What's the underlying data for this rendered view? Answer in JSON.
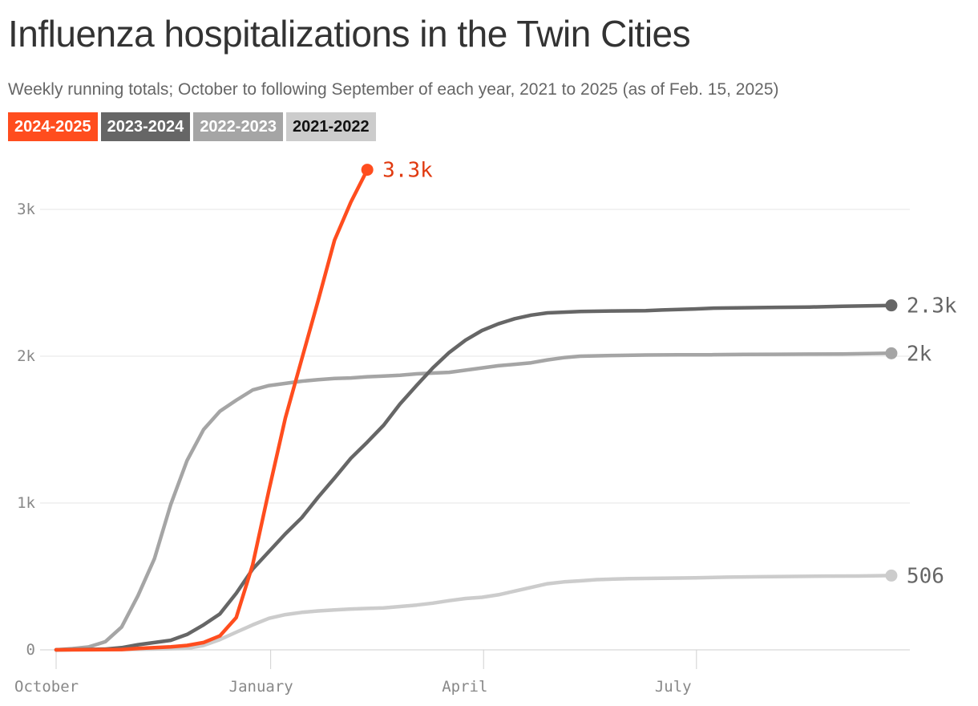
{
  "chart_data": {
    "type": "line",
    "title": "Influenza hospitalizations in the Twin Cities",
    "subtitle": "Weekly running totals; October to following September of each year, 2021 to 2025 (as of Feb. 15, 2025)",
    "xlabel": "",
    "ylabel": "",
    "x_unit": "weeks since October 1",
    "x_ticks": [
      {
        "label": "October",
        "week": 0
      },
      {
        "label": "January",
        "week": 13.1
      },
      {
        "label": "April",
        "week": 26.1
      },
      {
        "label": "July",
        "week": 39.1
      }
    ],
    "y_ticks": [
      {
        "label": "0",
        "value": 0
      },
      {
        "label": "1k",
        "value": 1000
      },
      {
        "label": "2k",
        "value": 2000
      },
      {
        "label": "3k",
        "value": 3000
      }
    ],
    "xlim": [
      0,
      51.5
    ],
    "ylim": [
      0,
      3000
    ],
    "grid": "horizontal",
    "legend_position": "top-left",
    "series": [
      {
        "name": "2021-2022",
        "color": "#cccccc",
        "text_color": "#111111",
        "end_label": "506",
        "label_color": "#666666",
        "x": [
          0,
          4,
          8,
          9,
          10,
          11,
          12,
          13,
          14,
          15,
          16,
          17,
          18,
          19,
          20,
          21,
          22,
          23,
          24,
          25,
          26,
          27,
          28,
          29,
          30,
          31,
          32,
          33,
          35,
          37,
          39,
          41,
          43,
          45,
          47,
          49,
          51
        ],
        "values": [
          0,
          2,
          10,
          30,
          70,
          120,
          170,
          215,
          240,
          255,
          265,
          272,
          278,
          282,
          285,
          295,
          305,
          318,
          335,
          350,
          358,
          375,
          400,
          425,
          450,
          463,
          470,
          478,
          485,
          488,
          490,
          495,
          498,
          500,
          502,
          503,
          506
        ]
      },
      {
        "name": "2022-2023",
        "color": "#a5a5a5",
        "text_color": "#ffffff",
        "end_label": "2k",
        "label_color": "#666666",
        "x": [
          0,
          1,
          2,
          3,
          4,
          5,
          6,
          7,
          8,
          9,
          10,
          11,
          12,
          13,
          14,
          15,
          16,
          17,
          18,
          19,
          20,
          21,
          22,
          23,
          24,
          25,
          26,
          27,
          28,
          29,
          30,
          31,
          32,
          34,
          36,
          38,
          40,
          42,
          44,
          46,
          48,
          51
        ],
        "values": [
          0,
          8,
          20,
          55,
          155,
          370,
          620,
          990,
          1290,
          1500,
          1625,
          1700,
          1770,
          1800,
          1815,
          1830,
          1840,
          1848,
          1852,
          1860,
          1865,
          1870,
          1880,
          1885,
          1890,
          1905,
          1920,
          1935,
          1945,
          1955,
          1975,
          1990,
          2000,
          2005,
          2008,
          2010,
          2010,
          2012,
          2013,
          2014,
          2015,
          2020
        ]
      },
      {
        "name": "2023-2024",
        "color": "#666666",
        "text_color": "#ffffff",
        "end_label": "2.3k",
        "label_color": "#666666",
        "x": [
          0,
          2,
          3,
          4,
          5,
          6,
          7,
          8,
          9,
          10,
          11,
          12,
          13,
          14,
          15,
          16,
          17,
          18,
          19,
          20,
          21,
          22,
          23,
          24,
          25,
          26,
          27,
          28,
          29,
          30,
          31,
          32,
          34,
          36,
          37,
          38,
          39,
          40,
          42,
          44,
          46,
          48,
          51
        ],
        "values": [
          0,
          3,
          5,
          15,
          35,
          50,
          65,
          105,
          170,
          245,
          385,
          550,
          670,
          790,
          900,
          1040,
          1170,
          1305,
          1415,
          1530,
          1675,
          1800,
          1920,
          2025,
          2110,
          2175,
          2220,
          2255,
          2280,
          2295,
          2300,
          2305,
          2308,
          2310,
          2315,
          2318,
          2322,
          2327,
          2330,
          2333,
          2335,
          2340,
          2346
        ]
      },
      {
        "name": "2024-2025",
        "color": "#ff4d1e",
        "text_color": "#ffffff",
        "end_label": "3.3k",
        "label_color": "#e03a10",
        "x": [
          0,
          4,
          5,
          6,
          7,
          8,
          9,
          10,
          11,
          12,
          13,
          14,
          15,
          16,
          17,
          18,
          19
        ],
        "values": [
          0,
          2,
          10,
          15,
          20,
          30,
          50,
          95,
          220,
          580,
          1090,
          1580,
          1980,
          2380,
          2790,
          3050,
          3270
        ]
      }
    ]
  }
}
